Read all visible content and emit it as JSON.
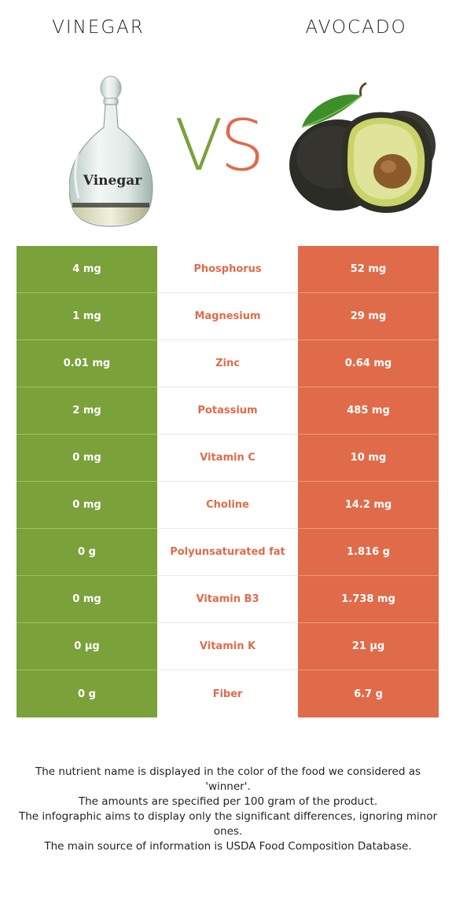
{
  "left_food": {
    "name": "VINEGAR",
    "color": "#7ba13a",
    "bottle_label": "Vinegar"
  },
  "right_food": {
    "name": "AVOCADO",
    "color": "#e06b4a"
  },
  "vs": {
    "v": "V",
    "s": "S"
  },
  "rows": [
    {
      "left": "4 mg",
      "nutrient": "Phosphorus",
      "right": "52 mg"
    },
    {
      "left": "1 mg",
      "nutrient": "Magnesium",
      "right": "29 mg"
    },
    {
      "left": "0.01 mg",
      "nutrient": "Zinc",
      "right": "0.64 mg"
    },
    {
      "left": "2 mg",
      "nutrient": "Potassium",
      "right": "485 mg"
    },
    {
      "left": "0 mg",
      "nutrient": "Vitamin C",
      "right": "10 mg"
    },
    {
      "left": "0 mg",
      "nutrient": "Choline",
      "right": "14.2 mg"
    },
    {
      "left": "0 g",
      "nutrient": "Polyunsaturated fat",
      "right": "1.816 g"
    },
    {
      "left": "0 mg",
      "nutrient": "Vitamin B3",
      "right": "1.738 mg"
    },
    {
      "left": "0 µg",
      "nutrient": "Vitamin K",
      "right": "21 µg"
    },
    {
      "left": "0 g",
      "nutrient": "Fiber",
      "right": "6.7 g"
    }
  ],
  "notes": [
    "The nutrient name is displayed in the color of the food we considered as",
    "'winner'.",
    "The amounts are specified per 100 gram of the product.",
    "The infographic aims to display only the significant differences, ignoring minor",
    "ones.",
    "The main source of information is USDA Food Composition Database."
  ]
}
